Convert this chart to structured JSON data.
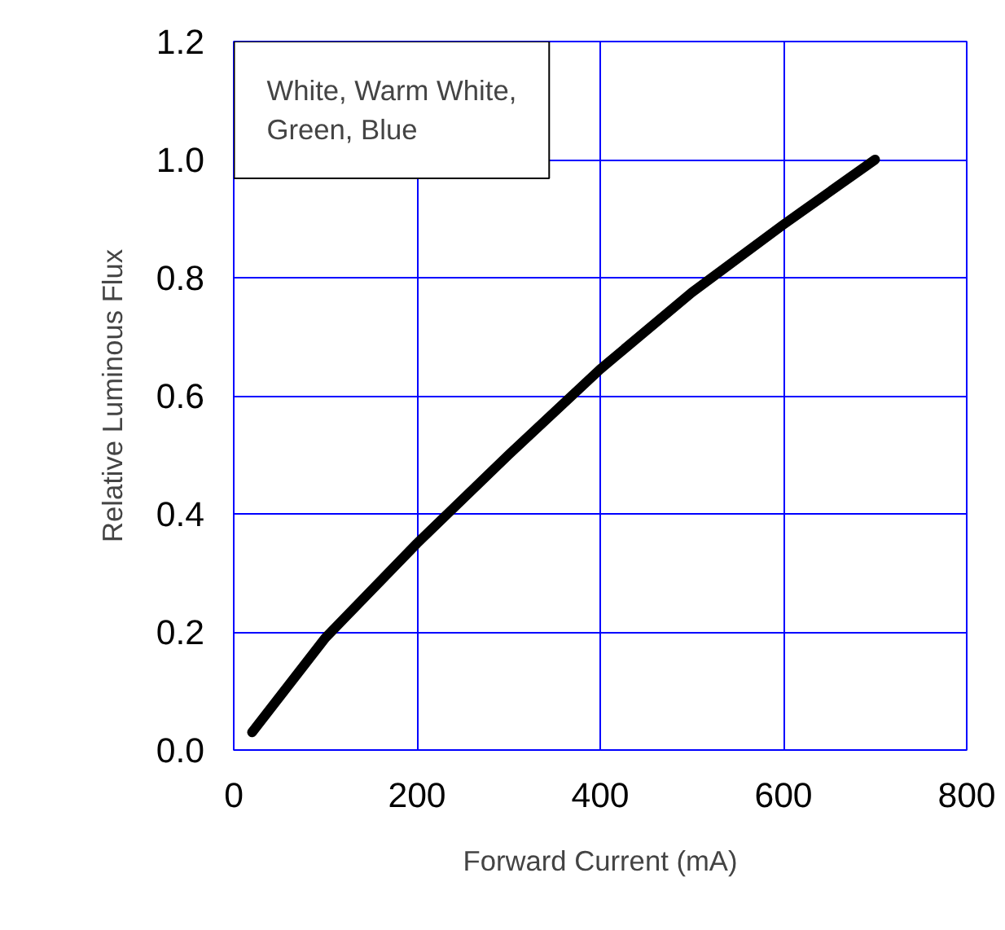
{
  "chart_data": {
    "type": "line",
    "xlabel": "Forward Current (mA)",
    "ylabel": "Relative Luminous Flux",
    "x": [
      20,
      100,
      200,
      300,
      400,
      500,
      600,
      700
    ],
    "series": [
      {
        "color": "#000000",
        "values": [
          0.03,
          0.19,
          0.35,
          0.5,
          0.645,
          0.775,
          0.89,
          1.0
        ]
      }
    ],
    "xlim": [
      0,
      800
    ],
    "ylim": [
      0,
      1.2
    ],
    "xticks": [
      0,
      200,
      400,
      600,
      800
    ],
    "yticks": [
      {
        "value": 0,
        "label": "0.0"
      },
      {
        "value": 0.2,
        "label": "0.2"
      },
      {
        "value": 0.4,
        "label": "0.4"
      },
      {
        "value": 0.6,
        "label": "0.6"
      },
      {
        "value": 0.8,
        "label": "0.8"
      },
      {
        "value": 1.0,
        "label": "1.0"
      },
      {
        "value": 1.2,
        "label": "1.2"
      }
    ],
    "grid": true,
    "marker": "none",
    "line_style": "solid",
    "annotations": [
      "White, Warm White,\nGreen, Blue"
    ]
  }
}
